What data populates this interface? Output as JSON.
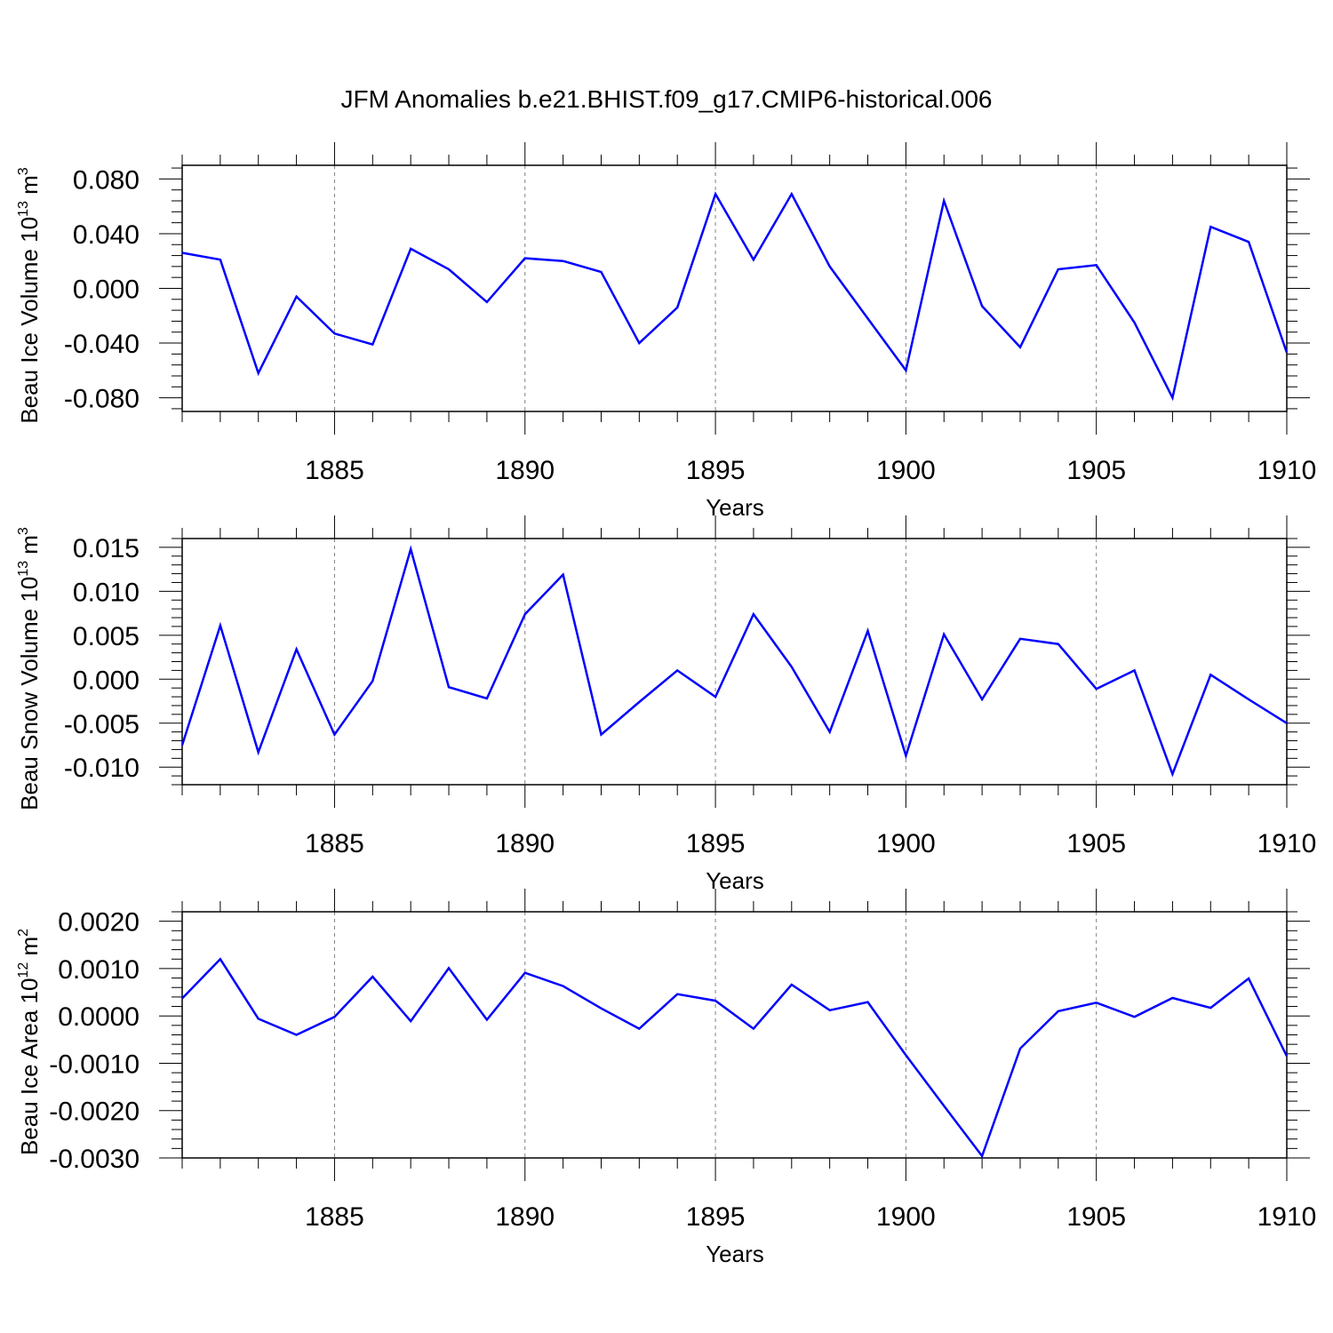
{
  "figure": {
    "title": "JFM Anomalies b.e21.BHIST.f09_g17.CMIP6-historical.006"
  },
  "colors": {
    "line": "#0000ff",
    "axis": "#000000",
    "grid": "#808080"
  },
  "chart_data": [
    {
      "type": "line",
      "ylabel": "Beau Ice Volume 10",
      "ylabel_exp": "13",
      "ylabel_unit": " m",
      "ylabel_unit_exp": "3",
      "xlabel": "Years",
      "xlim": [
        1881,
        1910
      ],
      "ylim": [
        -0.09,
        0.09
      ],
      "yticks": [
        -0.08,
        -0.04,
        0.0,
        0.04,
        0.08
      ],
      "ytick_labels": [
        "-0.080",
        "-0.040",
        "0.000",
        "0.040",
        "0.080"
      ],
      "xticks": [
        1885,
        1890,
        1895,
        1900,
        1905,
        1910
      ],
      "xtick_labels": [
        "1885",
        "1890",
        "1895",
        "1900",
        "1905",
        "1910"
      ],
      "grid": "vertical dashed at major x ticks",
      "x": [
        1881,
        1882,
        1883,
        1884,
        1885,
        1886,
        1887,
        1888,
        1889,
        1890,
        1891,
        1892,
        1893,
        1894,
        1895,
        1896,
        1897,
        1898,
        1899,
        1900,
        1901,
        1902,
        1903,
        1904,
        1905,
        1906,
        1907,
        1908,
        1909,
        1910
      ],
      "series": [
        {
          "values": [
            0.026,
            0.021,
            -0.062,
            -0.006,
            -0.033,
            -0.041,
            0.029,
            0.014,
            -0.01,
            0.022,
            0.02,
            0.012,
            -0.04,
            -0.014,
            0.069,
            0.021,
            0.069,
            0.016,
            -0.022,
            -0.06,
            0.064,
            -0.013,
            -0.043,
            0.014,
            0.017,
            -0.025,
            -0.08,
            0.045,
            0.034,
            -0.047
          ]
        }
      ]
    },
    {
      "type": "line",
      "ylabel": "Beau Snow Volume 10",
      "ylabel_exp": "13",
      "ylabel_unit": " m",
      "ylabel_unit_exp": "3",
      "xlabel": "Years",
      "xlim": [
        1881,
        1910
      ],
      "ylim": [
        -0.012,
        0.016
      ],
      "yticks": [
        -0.01,
        -0.005,
        0.0,
        0.005,
        0.01,
        0.015
      ],
      "ytick_labels": [
        "-0.010",
        "-0.005",
        "0.000",
        "0.005",
        "0.010",
        "0.015"
      ],
      "xticks": [
        1885,
        1890,
        1895,
        1900,
        1905,
        1910
      ],
      "xtick_labels": [
        "1885",
        "1890",
        "1895",
        "1900",
        "1905",
        "1910"
      ],
      "grid": "vertical dashed at major x ticks",
      "x": [
        1881,
        1882,
        1883,
        1884,
        1885,
        1886,
        1887,
        1888,
        1889,
        1890,
        1891,
        1892,
        1893,
        1894,
        1895,
        1896,
        1897,
        1898,
        1899,
        1900,
        1901,
        1902,
        1903,
        1904,
        1905,
        1906,
        1907,
        1908,
        1909,
        1910
      ],
      "series": [
        {
          "values": [
            -0.0075,
            0.0061,
            -0.0083,
            0.0034,
            -0.0063,
            -0.0002,
            0.0148,
            -0.0009,
            -0.0022,
            0.0074,
            0.0119,
            -0.0063,
            -0.0026,
            0.001,
            -0.002,
            0.0074,
            0.0014,
            -0.006,
            0.0055,
            -0.0087,
            0.0051,
            -0.0023,
            0.0046,
            0.004,
            -0.0011,
            0.001,
            -0.0108,
            0.0005,
            -0.0023,
            -0.005
          ]
        }
      ]
    },
    {
      "type": "line",
      "ylabel": "Beau Ice Area 10",
      "ylabel_exp": "12",
      "ylabel_unit": " m",
      "ylabel_unit_exp": "2",
      "xlabel": "Years",
      "xlim": [
        1881,
        1910
      ],
      "ylim": [
        -0.003,
        0.0022
      ],
      "yticks": [
        -0.003,
        -0.002,
        -0.001,
        0.0,
        0.001,
        0.002
      ],
      "ytick_labels": [
        "-0.0030",
        "-0.0020",
        "-0.0010",
        "0.0000",
        "0.0010",
        "0.0020"
      ],
      "xticks": [
        1885,
        1890,
        1895,
        1900,
        1905,
        1910
      ],
      "xtick_labels": [
        "1885",
        "1890",
        "1895",
        "1900",
        "1905",
        "1910"
      ],
      "grid": "vertical dashed at major x ticks",
      "x": [
        1881,
        1882,
        1883,
        1884,
        1885,
        1886,
        1887,
        1888,
        1889,
        1890,
        1891,
        1892,
        1893,
        1894,
        1895,
        1896,
        1897,
        1898,
        1899,
        1900,
        1901,
        1902,
        1903,
        1904,
        1905,
        1906,
        1907,
        1908,
        1909,
        1910
      ],
      "series": [
        {
          "values": [
            0.00037,
            0.0012,
            -6e-05,
            -0.0004,
            -2e-05,
            0.00083,
            -0.00011,
            0.00101,
            -8e-05,
            0.00091,
            0.00063,
            0.00016,
            -0.00027,
            0.00046,
            0.00032,
            -0.00027,
            0.00066,
            0.00012,
            0.00029,
            -0.00083,
            -0.0019,
            -0.00296,
            -0.00069,
            0.0001,
            0.00028,
            -2e-05,
            0.00038,
            0.00017,
            0.00079,
            -0.00085
          ]
        }
      ]
    }
  ]
}
